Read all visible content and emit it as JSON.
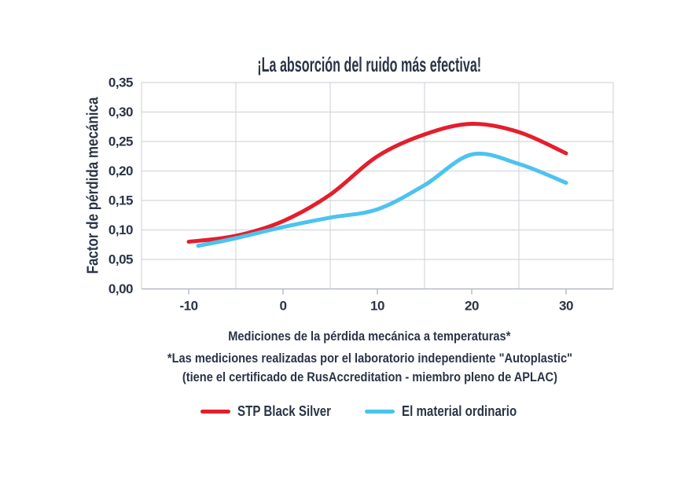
{
  "title": "¡La absorción del ruido más efectiva!",
  "colors": {
    "accent_red": "#e41e2d",
    "accent_blue": "#4cc3ee",
    "text_navy": "#2b3447",
    "grid": "#d4d7db",
    "axis": "#b4bac3"
  },
  "chart_data": {
    "type": "line",
    "title": "¡La absorción del ruido más efectiva!",
    "xlabel": "Mediciones de la pérdida mecánica a temperaturas*",
    "ylabel": "Factor de pérdida mecánica",
    "xlim": [
      -15,
      35
    ],
    "ylim": [
      0,
      0.35
    ],
    "grid": true,
    "x_ticks": [
      -10,
      0,
      10,
      20,
      30
    ],
    "x_tick_labels": [
      "-10",
      "0",
      "10",
      "20",
      "30"
    ],
    "x_gridlines": [
      -15,
      -5,
      5,
      15,
      25,
      35
    ],
    "y_ticks": [
      0,
      0.05,
      0.1,
      0.15,
      0.2,
      0.25,
      0.3,
      0.35
    ],
    "y_tick_labels": [
      "0,00",
      "0,05",
      "0,10",
      "0,15",
      "0,20",
      "0,25",
      "0,30",
      "0,35"
    ],
    "legend_position": "bottom",
    "series": [
      {
        "name": "STP Black Silver",
        "color": "#e41e2d",
        "x": [
          -10,
          -5,
          0,
          5,
          10,
          15,
          20,
          25,
          30
        ],
        "y": [
          0.08,
          0.09,
          0.115,
          0.16,
          0.225,
          0.262,
          0.28,
          0.266,
          0.23
        ]
      },
      {
        "name": "El material ordinario",
        "color": "#4cc3ee",
        "x": [
          -9,
          -5,
          0,
          5,
          10,
          15,
          20,
          25,
          30
        ],
        "y": [
          0.073,
          0.086,
          0.105,
          0.121,
          0.135,
          0.176,
          0.228,
          0.212,
          0.18
        ]
      }
    ]
  },
  "footnotes": [
    "*Las mediciones realizadas por el laboratorio independiente \"Autoplastic\"",
    "(tiene el certificado de RusAccreditation - miembro pleno de APLAC)"
  ],
  "legend": {
    "items": [
      {
        "label": "STP Black Silver",
        "color": "#e41e2d"
      },
      {
        "label": "El material ordinario",
        "color": "#4cc3ee"
      }
    ]
  }
}
